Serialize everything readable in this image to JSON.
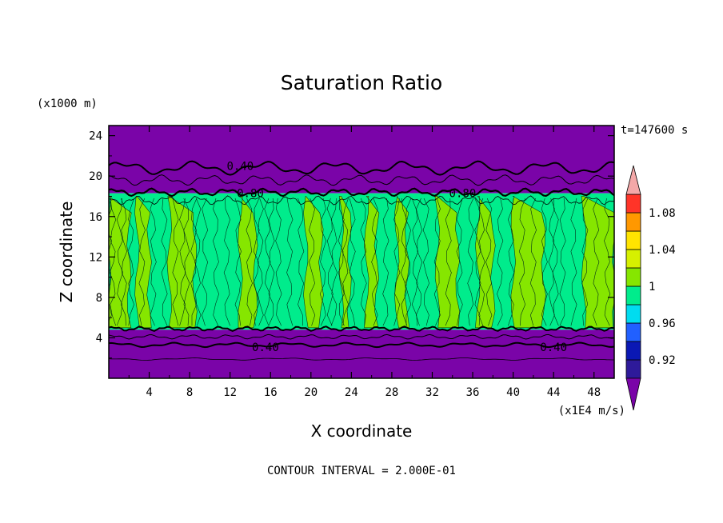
{
  "chart_data": {
    "type": "heatmap",
    "title": "Saturation Ratio",
    "xlabel": "X coordinate",
    "ylabel": "Z coordinate",
    "x_unit": "(x1E4 m/s)",
    "y_unit": "(x1000 m)",
    "time_label": "t=147600 s",
    "contour_interval": "CONTOUR INTERVAL = 2.000E-01",
    "xlim": [
      0,
      50
    ],
    "ylim": [
      0,
      25
    ],
    "x_ticks": [
      4,
      8,
      12,
      16,
      20,
      24,
      28,
      32,
      36,
      40,
      44,
      48
    ],
    "x_tick_labels": [
      "4",
      "8",
      "12",
      "16",
      "20",
      "24",
      "28",
      "32",
      "36",
      "40",
      "44",
      "48"
    ],
    "y_ticks": [
      4,
      8,
      12,
      16,
      20,
      24
    ],
    "y_tick_labels": [
      "4",
      "8",
      "12",
      "16",
      "20",
      "24"
    ],
    "contour_labels": [
      {
        "text": "0.40",
        "x": 13,
        "y": 21
      },
      {
        "text": "0.80",
        "x": 14,
        "y": 18.3
      },
      {
        "text": "0.80",
        "x": 35,
        "y": 18.3
      },
      {
        "text": "0.40",
        "x": 15.5,
        "y": 3.1
      },
      {
        "text": "0.40",
        "x": 44,
        "y": 3.1
      }
    ],
    "regions": {
      "upper_dry": {
        "z_from": 18.3,
        "z_to": 25,
        "level": "below 0.90"
      },
      "cloud_layer": {
        "z_from": 4.8,
        "z_to": 18.3,
        "level": "0.96 to 1.00"
      },
      "lower_dry": {
        "z_from": 0,
        "z_to": 4.8,
        "level": "below 0.90"
      }
    },
    "moist_columns": [
      [
        0,
        2
      ],
      [
        2.8,
        4
      ],
      [
        6,
        8.5
      ],
      [
        13,
        14.5
      ],
      [
        19.5,
        21
      ],
      [
        23,
        23.8
      ],
      [
        25.5,
        26.5
      ],
      [
        28.5,
        29.5
      ],
      [
        32.5,
        34.5
      ],
      [
        36.5,
        38
      ],
      [
        40,
        43
      ],
      [
        47,
        50
      ]
    ],
    "colorbar": {
      "levels": [
        0.9,
        0.92,
        0.94,
        0.96,
        0.98,
        1.0,
        1.02,
        1.04,
        1.06,
        1.08,
        1.1
      ],
      "labels": [
        "1.08",
        "1.04",
        "1",
        "0.96",
        "0.92"
      ],
      "label_values": [
        1.08,
        1.04,
        1.0,
        0.96,
        0.92
      ],
      "colors": [
        "#2e1a9a",
        "#0a18b4",
        "#2160ff",
        "#00dcf0",
        "#00ec8c",
        "#86e600",
        "#d6f000",
        "#ffe400",
        "#ff9800",
        "#ff3428"
      ],
      "under_color": "#7a04a8",
      "over_color": "#f4a8a8"
    }
  }
}
